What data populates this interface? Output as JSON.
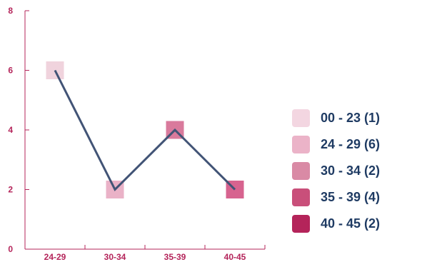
{
  "chart_data": {
    "type": "line",
    "categories": [
      "24-29",
      "30-34",
      "35-39",
      "40-45"
    ],
    "values": [
      6,
      2,
      4,
      2
    ],
    "marker_colors": [
      "#f0d3dd",
      "#eab2c7",
      "#d97a9c",
      "#d7638f"
    ],
    "line_color": "#425476",
    "axis_color": "#b4245a",
    "ylim": [
      0,
      8
    ],
    "yticks": [
      "0",
      "2",
      "4",
      "6",
      "8"
    ],
    "title": "",
    "xlabel": "",
    "ylabel": "",
    "grid": false,
    "legend_position": "right",
    "legend": [
      {
        "label": "00 - 23 (1)",
        "color": "#f3d6e1"
      },
      {
        "label": "24 - 29 (6)",
        "color": "#ebb3c8"
      },
      {
        "label": "30 - 34 (2)",
        "color": "#d98aa5"
      },
      {
        "label": "35 - 39 (4)",
        "color": "#c94f7a"
      },
      {
        "label": "40 - 45 (2)",
        "color": "#b4245a"
      }
    ]
  }
}
